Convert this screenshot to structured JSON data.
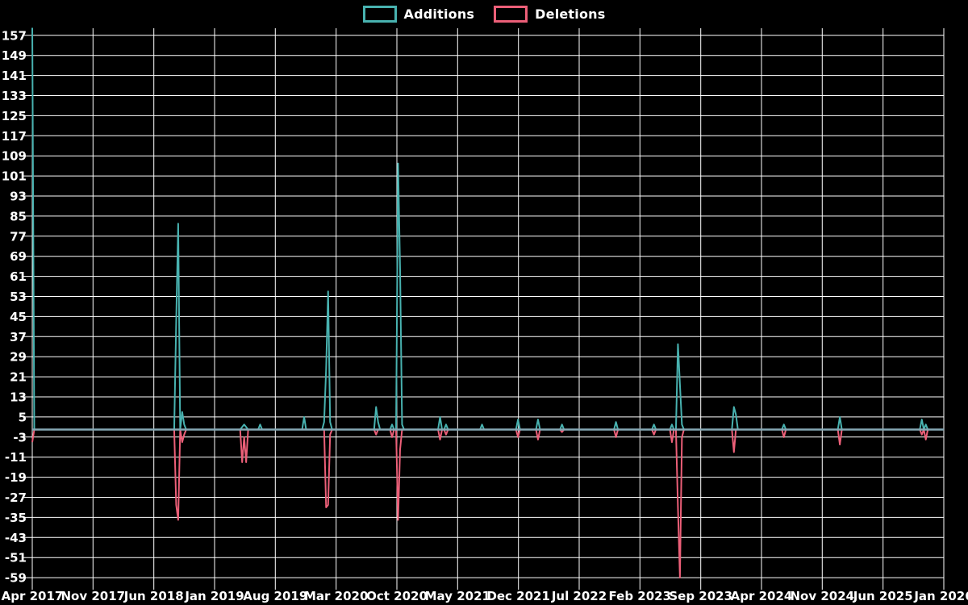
{
  "legend": {
    "items": [
      {
        "label": "Additions",
        "color": "#48b2b0"
      },
      {
        "label": "Deletions",
        "color": "#ec5f78"
      }
    ]
  },
  "colors": {
    "background": "#000000",
    "additions": "#48b2b0",
    "deletions": "#ec5f78",
    "baseline": "#85a8b4",
    "grid": "#ffffff",
    "text": "#ffffff"
  },
  "chart_data": {
    "type": "line",
    "title": "",
    "legend_position": "top-center",
    "grid": true,
    "x_axis": {
      "labels": [
        "Apr 2017",
        "Nov 2017",
        "Jun 2018",
        "Jan 2019",
        "Aug 2019",
        "Mar 2020",
        "Oct 2020",
        "May 2021",
        "Dec 2021",
        "Jul 2022",
        "Feb 2023",
        "Sep 2023",
        "Apr 2024",
        "Nov 2024",
        "Jun 2025",
        "Jan 2026"
      ],
      "total_weeks": 456,
      "unit": "weekly points from Apr 2017 to Jan 2026, tick every 7 months"
    },
    "y_axis": {
      "min": -59,
      "max": 157,
      "step": 8,
      "tick_labels": [
        "157",
        "149",
        "141",
        "133",
        "125",
        "117",
        "109",
        "101",
        "93",
        "85",
        "77",
        "69",
        "61",
        "53",
        "45",
        "37",
        "29",
        "21",
        "13",
        "5",
        "-3",
        "-11",
        "-19",
        "-27",
        "-35",
        "-43",
        "-51",
        "-59"
      ]
    },
    "series": [
      {
        "name": "Additions",
        "color_key": "additions",
        "default_value": 0,
        "points_sparse": [
          [
            0,
            160
          ],
          [
            72,
            43
          ],
          [
            73,
            82
          ],
          [
            75,
            7
          ],
          [
            76,
            2
          ],
          [
            105,
            1
          ],
          [
            106,
            2
          ],
          [
            107,
            1
          ],
          [
            114,
            2
          ],
          [
            136,
            5
          ],
          [
            146,
            3
          ],
          [
            147,
            24
          ],
          [
            148,
            55
          ],
          [
            149,
            3
          ],
          [
            172,
            9
          ],
          [
            173,
            3
          ],
          [
            180,
            2
          ],
          [
            183,
            106
          ],
          [
            184,
            64
          ],
          [
            185,
            2
          ],
          [
            204,
            5
          ],
          [
            207,
            2
          ],
          [
            225,
            2
          ],
          [
            243,
            4
          ],
          [
            253,
            4
          ],
          [
            265,
            2
          ],
          [
            292,
            3
          ],
          [
            311,
            2
          ],
          [
            320,
            2
          ],
          [
            323,
            34
          ],
          [
            324,
            18
          ],
          [
            325,
            2
          ],
          [
            351,
            9
          ],
          [
            352,
            6
          ],
          [
            376,
            2
          ],
          [
            404,
            5
          ],
          [
            445,
            4
          ],
          [
            447,
            2
          ]
        ]
      },
      {
        "name": "Deletions",
        "color_key": "deletions",
        "default_value": 0,
        "points_sparse": [
          [
            0,
            -5
          ],
          [
            72,
            -30
          ],
          [
            73,
            -36
          ],
          [
            75,
            -5
          ],
          [
            76,
            -2
          ],
          [
            105,
            -13
          ],
          [
            106,
            -3
          ],
          [
            107,
            -13
          ],
          [
            147,
            -31
          ],
          [
            148,
            -30
          ],
          [
            149,
            -2
          ],
          [
            172,
            -2
          ],
          [
            180,
            -3
          ],
          [
            183,
            -36
          ],
          [
            184,
            -8
          ],
          [
            204,
            -4
          ],
          [
            207,
            -2
          ],
          [
            243,
            -3
          ],
          [
            253,
            -4
          ],
          [
            265,
            -1
          ],
          [
            292,
            -3
          ],
          [
            311,
            -2
          ],
          [
            320,
            -5
          ],
          [
            323,
            -31
          ],
          [
            324,
            -59
          ],
          [
            325,
            -3
          ],
          [
            351,
            -9
          ],
          [
            376,
            -3
          ],
          [
            404,
            -6
          ],
          [
            445,
            -2
          ],
          [
            447,
            -4
          ]
        ]
      }
    ],
    "zero_baseline_color": "#85a8b4"
  }
}
